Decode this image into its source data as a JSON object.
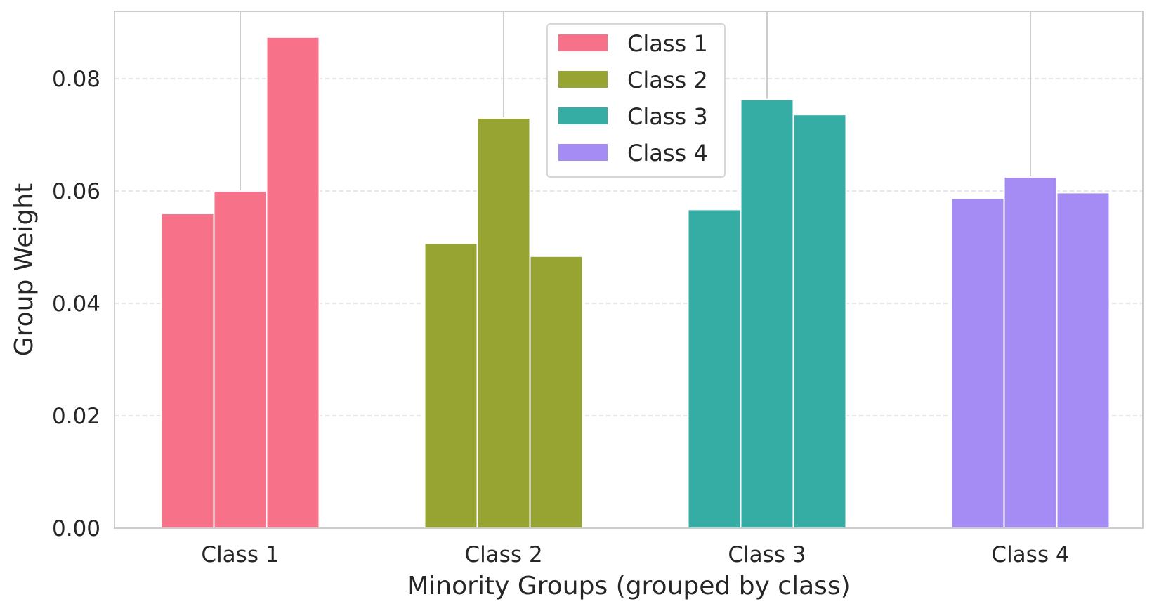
{
  "chart_data": {
    "type": "bar",
    "title": "",
    "xlabel": "Minority Groups (grouped by class)",
    "ylabel": "Group Weight",
    "categories": [
      "Class 1",
      "Class 2",
      "Class 3",
      "Class 4"
    ],
    "groups_per_category": 3,
    "values": [
      [
        0.056,
        0.06,
        0.0874
      ],
      [
        0.0507,
        0.073,
        0.0484
      ],
      [
        0.0567,
        0.0763,
        0.0736
      ],
      [
        0.0587,
        0.0625,
        0.0597
      ]
    ],
    "colors": [
      "#f77189",
      "#97a431",
      "#36ada4",
      "#a48cf4"
    ],
    "ylim": [
      0,
      0.092
    ],
    "yticks": [
      0.0,
      0.02,
      0.04,
      0.06,
      0.08
    ],
    "ytick_labels": [
      "0.00",
      "0.02",
      "0.04",
      "0.06",
      "0.08"
    ],
    "grid": "horizontal dashed",
    "legend": {
      "position": "top-center",
      "entries": [
        {
          "label": "Class 1",
          "color": "#f77189"
        },
        {
          "label": "Class 2",
          "color": "#97a431"
        },
        {
          "label": "Class 3",
          "color": "#36ada4"
        },
        {
          "label": "Class 4",
          "color": "#a48cf4"
        }
      ]
    }
  }
}
